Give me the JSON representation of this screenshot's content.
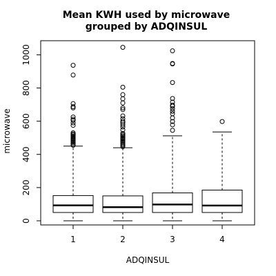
{
  "chart_data": {
    "type": "boxplot",
    "title_line1": "Mean KWH used by microwave",
    "title_line2": "grouped by ADQINSUL",
    "xlabel": "ADQINSUL",
    "ylabel": "microwave",
    "ylim": [
      -25,
      1085
    ],
    "yticks": [
      0,
      200,
      400,
      600,
      800,
      1000
    ],
    "categories": [
      "1",
      "2",
      "3",
      "4"
    ],
    "boxes": [
      {
        "category": "1",
        "whisker_low": 0,
        "q1": 50,
        "median": 93,
        "q3": 152,
        "whisker_high": 450,
        "outliers": [
          455,
          462,
          470,
          476,
          483,
          490,
          496,
          503,
          510,
          517,
          523,
          530,
          575,
          590,
          605,
          612,
          625,
          680,
          688,
          706,
          878,
          937
        ]
      },
      {
        "category": "2",
        "whisker_low": 0,
        "q1": 50,
        "median": 82,
        "q3": 150,
        "whisker_high": 440,
        "outliers": [
          447,
          455,
          462,
          470,
          477,
          484,
          491,
          498,
          505,
          512,
          519,
          527,
          548,
          565,
          578,
          590,
          600,
          615,
          632,
          670,
          680,
          710,
          735,
          760,
          805,
          1045
        ]
      },
      {
        "category": "3",
        "whisker_low": 0,
        "q1": 50,
        "median": 98,
        "q3": 168,
        "whisker_high": 512,
        "outliers": [
          545,
          578,
          598,
          620,
          645,
          660,
          675,
          690,
          697,
          715,
          737,
          833,
          945,
          948,
          1024
        ]
      },
      {
        "category": "4",
        "whisker_low": 0,
        "q1": 50,
        "median": 92,
        "q3": 185,
        "whisker_high": 535,
        "outliers": [
          598
        ]
      }
    ]
  }
}
